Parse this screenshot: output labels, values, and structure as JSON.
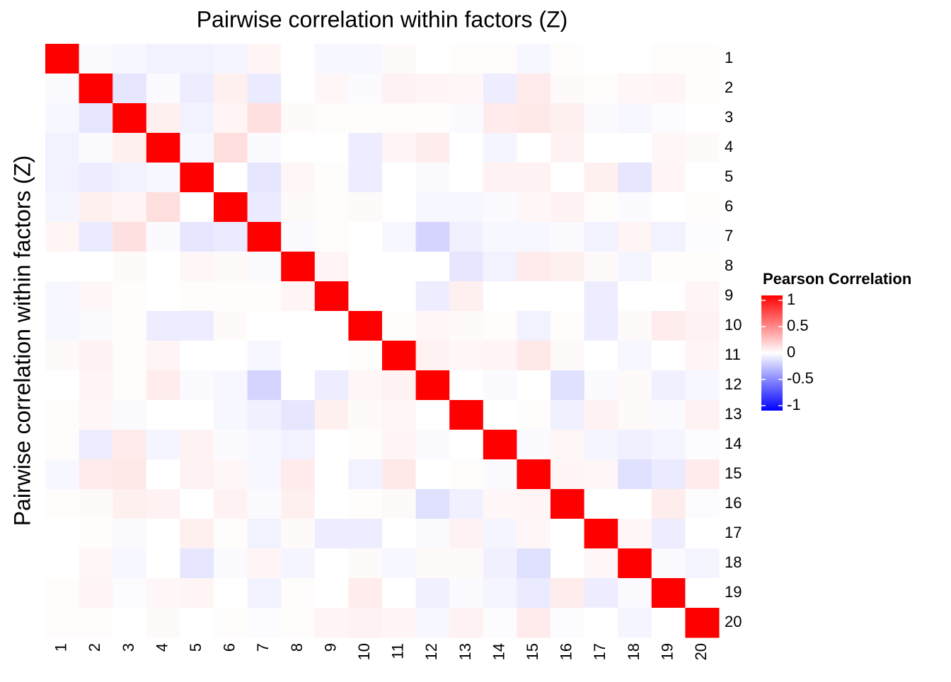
{
  "chart_data": {
    "type": "heatmap",
    "title": "Pairwise correlation within factors (Z)",
    "y_label": "Pairwise correlation within factors (Z)",
    "x_categories": [
      "1",
      "2",
      "3",
      "4",
      "5",
      "6",
      "7",
      "8",
      "9",
      "10",
      "11",
      "12",
      "13",
      "14",
      "15",
      "16",
      "17",
      "18",
      "19",
      "20"
    ],
    "y_categories": [
      "1",
      "2",
      "3",
      "4",
      "5",
      "6",
      "7",
      "8",
      "9",
      "10",
      "11",
      "12",
      "13",
      "14",
      "15",
      "16",
      "17",
      "18",
      "19",
      "20"
    ],
    "values": [
      [
        1,
        -0.02,
        -0.03,
        -0.05,
        -0.05,
        -0.04,
        0.04,
        0,
        -0.03,
        -0.03,
        0.02,
        0,
        0.01,
        0.01,
        -0.03,
        0.01,
        0,
        0,
        0.01,
        0.01
      ],
      [
        -0.02,
        1,
        -0.1,
        -0.02,
        -0.07,
        0.06,
        -0.08,
        0,
        0.03,
        -0.02,
        0.05,
        0.04,
        0.03,
        -0.07,
        0.08,
        0.02,
        0.01,
        0.03,
        0.04,
        0.01
      ],
      [
        -0.03,
        -0.1,
        1,
        0.06,
        -0.05,
        0.04,
        0.12,
        0.02,
        0.01,
        0.01,
        0.01,
        0.01,
        -0.02,
        0.08,
        0.09,
        0.06,
        -0.02,
        -0.03,
        -0.01,
        0
      ],
      [
        -0.05,
        -0.02,
        0.06,
        1,
        -0.03,
        0.13,
        -0.02,
        0,
        0,
        -0.07,
        0.04,
        0.07,
        0,
        -0.04,
        0,
        0.05,
        0,
        0,
        0.03,
        0.02
      ],
      [
        -0.05,
        -0.07,
        -0.05,
        -0.03,
        1,
        0,
        -0.1,
        0.03,
        0.01,
        -0.07,
        0,
        -0.02,
        0,
        0.05,
        0.05,
        0,
        0.06,
        -0.1,
        0.04,
        0
      ],
      [
        -0.04,
        0.06,
        0.04,
        0.13,
        0,
        1,
        -0.08,
        0.02,
        0.01,
        0.02,
        0,
        -0.03,
        -0.03,
        -0.02,
        0.03,
        0.05,
        0.01,
        -0.02,
        0,
        0.01
      ],
      [
        0.04,
        -0.08,
        0.12,
        -0.02,
        -0.1,
        -0.08,
        1,
        -0.02,
        0.01,
        0,
        -0.03,
        -0.17,
        -0.06,
        -0.03,
        -0.03,
        -0.02,
        -0.05,
        0.04,
        -0.05,
        -0.01
      ],
      [
        0,
        0,
        0.02,
        0,
        0.03,
        0.02,
        -0.02,
        1,
        0.04,
        0,
        0,
        0,
        -0.1,
        -0.05,
        0.08,
        0.06,
        0.02,
        -0.04,
        0.01,
        0.01
      ],
      [
        -0.03,
        0.03,
        0.01,
        0,
        0.01,
        0.01,
        0.01,
        0.04,
        1,
        0,
        0,
        -0.07,
        0.06,
        0,
        0,
        0,
        -0.07,
        0,
        0,
        0.04
      ],
      [
        -0.03,
        -0.02,
        0.01,
        -0.07,
        -0.07,
        0.02,
        0,
        0,
        0,
        1,
        0.01,
        0.03,
        0.02,
        0.01,
        -0.05,
        0.01,
        -0.07,
        0.02,
        0.07,
        0.05
      ],
      [
        0.02,
        0.05,
        0.01,
        0.04,
        0,
        0,
        -0.03,
        0,
        0,
        0.01,
        1,
        0.05,
        0.03,
        0.04,
        0.09,
        0.02,
        0,
        -0.03,
        0,
        0.04
      ],
      [
        0,
        0.04,
        0.01,
        0.07,
        -0.02,
        -0.03,
        -0.17,
        0,
        -0.07,
        0.03,
        0.05,
        1,
        0,
        -0.02,
        0,
        -0.12,
        -0.02,
        0.02,
        -0.06,
        -0.03
      ],
      [
        0.01,
        0.03,
        -0.02,
        0,
        0,
        -0.03,
        -0.06,
        -0.1,
        0.06,
        0.02,
        0.03,
        0,
        1,
        0,
        0.01,
        -0.06,
        0.05,
        0.02,
        -0.02,
        0.05
      ],
      [
        0.01,
        -0.07,
        0.08,
        -0.04,
        0.05,
        -0.02,
        -0.03,
        -0.05,
        0,
        0.01,
        0.04,
        -0.02,
        0,
        1,
        -0.02,
        0.03,
        -0.04,
        -0.06,
        -0.04,
        -0.01
      ],
      [
        -0.03,
        0.08,
        0.09,
        0,
        0.05,
        0.03,
        -0.03,
        0.08,
        0,
        -0.05,
        0.09,
        0,
        0.01,
        -0.02,
        1,
        0.04,
        0.03,
        -0.12,
        -0.08,
        0.08
      ],
      [
        0.01,
        0.02,
        0.06,
        0.05,
        0,
        0.05,
        -0.02,
        0.06,
        0,
        0.01,
        0.02,
        -0.12,
        -0.06,
        0.03,
        0.04,
        1,
        0,
        0,
        0.07,
        -0.01
      ],
      [
        0,
        0.01,
        -0.02,
        0,
        0.06,
        0.01,
        -0.05,
        0.02,
        -0.07,
        -0.07,
        0,
        -0.02,
        0.05,
        -0.04,
        0.03,
        0,
        1,
        0.03,
        -0.07,
        0
      ],
      [
        0,
        0.03,
        -0.03,
        0,
        -0.1,
        -0.02,
        0.04,
        -0.04,
        0,
        0.02,
        -0.03,
        0.02,
        0.02,
        -0.06,
        -0.12,
        0,
        0.03,
        1,
        -0.02,
        -0.04
      ],
      [
        0.01,
        0.04,
        -0.01,
        0.03,
        0.04,
        0,
        -0.05,
        0.01,
        0,
        0.07,
        0,
        -0.06,
        -0.02,
        -0.04,
        -0.08,
        0.07,
        -0.07,
        -0.02,
        1,
        0
      ],
      [
        0.01,
        0.01,
        0,
        0.02,
        0,
        0.01,
        -0.01,
        0.01,
        0.04,
        0.05,
        0.04,
        -0.03,
        0.05,
        -0.01,
        0.08,
        -0.01,
        0,
        -0.04,
        0,
        1
      ]
    ],
    "legend_title": "Pearson Correlation",
    "colors": {
      "low": "#0000ff",
      "mid": "#ffffff",
      "high": "#ff0000"
    },
    "color_limits": [
      -1,
      1
    ],
    "colorbar_ticks": [
      1,
      0.5,
      0,
      -0.5,
      -1
    ]
  }
}
